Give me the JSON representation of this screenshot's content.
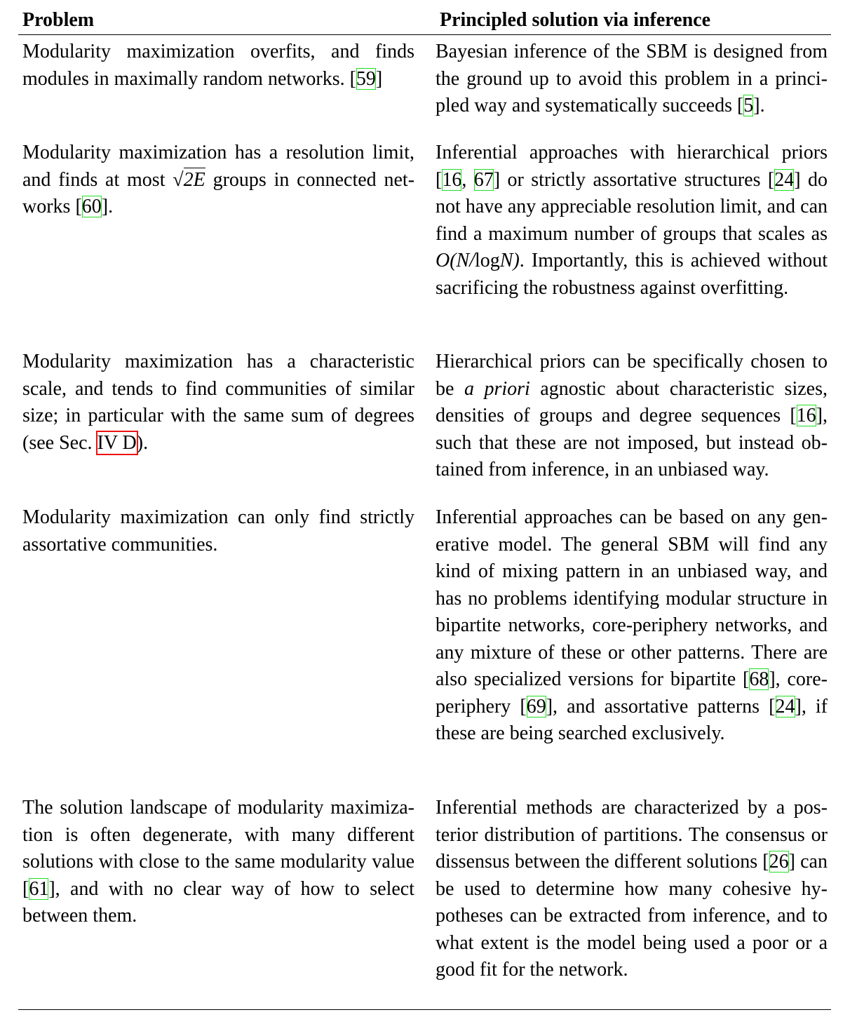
{
  "header": {
    "problem": "Problem",
    "solution": "Principled solution via inference"
  },
  "rows": [
    {
      "problem": [
        {
          "t": "Modularity maximization overfits, and finds modules in maximally random networks. ["
        },
        {
          "ref": "59"
        },
        {
          "t": "]"
        }
      ],
      "solution": [
        {
          "t": "Bayesian inference of the SBM is designed from the ground up to avoid this problem in a princi­pled way and systematically succeeds ["
        },
        {
          "ref": "5"
        },
        {
          "t": "]."
        }
      ]
    },
    {
      "problem": [
        {
          "t": "Modularity maximization has a resolution limit, and finds at most "
        },
        {
          "sqrt": "2E"
        },
        {
          "t": " groups in connected net­works ["
        },
        {
          "ref": "60"
        },
        {
          "t": "]."
        }
      ],
      "solution": [
        {
          "t": "Inferential approaches with hierarchical pri­ors ["
        },
        {
          "ref": "16"
        },
        {
          "t": ", "
        },
        {
          "ref": "67"
        },
        {
          "t": "] or strictly assortative structures ["
        },
        {
          "ref": "24"
        },
        {
          "t": "] do not have any appreciable resolution limit, and can find a maximum number of groups that scales as "
        },
        {
          "m": "O(N/"
        },
        {
          "t": "log"
        },
        {
          "m": "N)"
        },
        {
          "t": ". Importantly, this is achieved without sacrificing the robustness against overfitting."
        }
      ]
    },
    {
      "problem": [
        {
          "t": "Modularity maximization has a characteristic scale, and tends to find communities of similar size; in particular with the same sum of degrees (see Sec. "
        },
        {
          "xref": "IV D"
        },
        {
          "t": ")."
        }
      ],
      "solution": [
        {
          "t": "Hierarchical priors can be specifically chosen to be "
        },
        {
          "i": "a priori"
        },
        {
          "t": " agnostic about characteristic sizes, densities of groups and degree sequences ["
        },
        {
          "ref": "16"
        },
        {
          "t": "], such that these are not imposed, but instead ob­tained from inference, in an unbiased way."
        }
      ]
    },
    {
      "problem": [
        {
          "t": "Modularity maximization can only find strictly assortative communities."
        }
      ],
      "solution": [
        {
          "t": "Inferential approaches can be based on any gen­erative model. The general SBM will find any kind of mixing pattern in an unbiased way, and has no problems identifying modular struc­ture in bipartite networks, core-periphery net­works, and any mixture of these or other pat­terns. There are also specialized versions for bipartite ["
        },
        {
          "ref": "68"
        },
        {
          "t": "], core-periphery ["
        },
        {
          "ref": "69"
        },
        {
          "t": "], and assorta­tive patterns ["
        },
        {
          "ref": "24"
        },
        {
          "t": "], if these are being searched exclusively."
        }
      ]
    },
    {
      "problem": [
        {
          "t": "The solution landscape of modularity maximiza­tion is often degenerate, with many different solutions with close to the same modularity value ["
        },
        {
          "ref": "61"
        },
        {
          "t": "], and with no clear way of how to se­lect between them."
        }
      ],
      "solution": [
        {
          "t": "Inferential methods are characterized by a pos­terior distribution of partitions. The consensus or dissensus between the different solutions ["
        },
        {
          "ref": "26"
        },
        {
          "t": "] can be used to determine how many cohesive hy­potheses can be extracted from inference, and to what extent is the model being used a poor or a good fit for the network."
        }
      ]
    }
  ]
}
